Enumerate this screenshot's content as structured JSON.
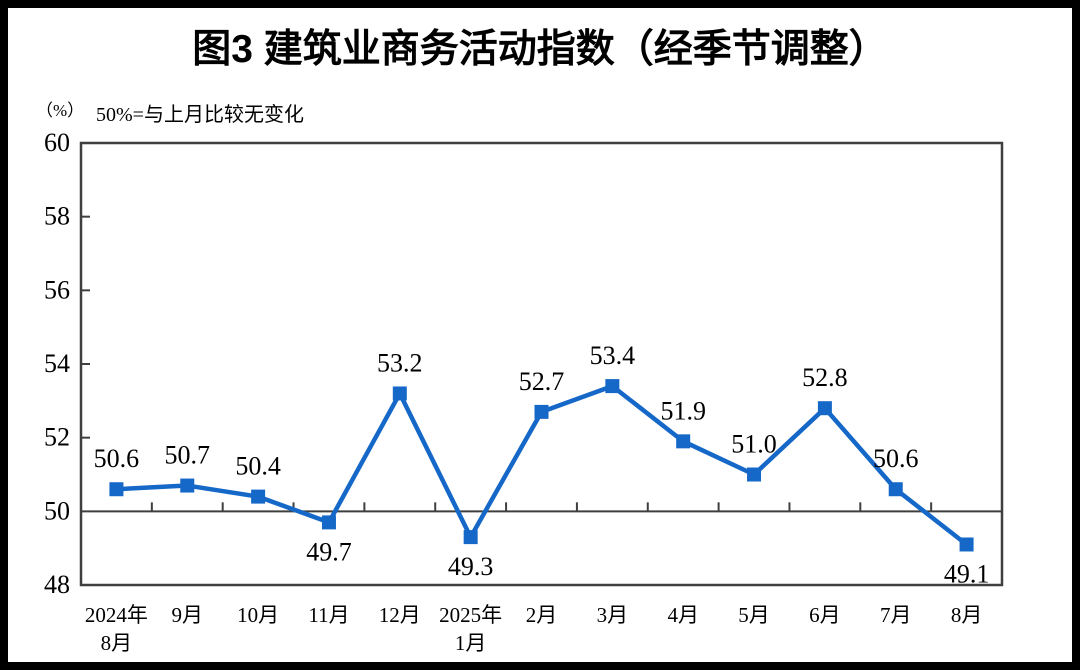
{
  "header": {
    "title": "图3 建筑业商务活动指数（经季节调整）",
    "unit_label": "（%）",
    "note": "50%=与上月比较无变化"
  },
  "chart_data": {
    "type": "line",
    "title": "图3 建筑业商务活动指数（经季节调整）",
    "unit_label": "（%）",
    "note": "50%=与上月比较无变化",
    "categories": [
      "2024年\n8月",
      "9月",
      "10月",
      "11月",
      "12月",
      "2025年\n1月",
      "2月",
      "3月",
      "4月",
      "5月",
      "6月",
      "7月",
      "8月"
    ],
    "series": [
      {
        "name": "建筑业商务活动指数",
        "values": [
          50.6,
          50.7,
          50.4,
          49.7,
          53.2,
          49.3,
          52.7,
          53.4,
          51.9,
          51.0,
          52.8,
          50.6,
          49.1
        ],
        "label_positions": [
          "above",
          "above",
          "above",
          "below",
          "above",
          "below",
          "above",
          "above",
          "above",
          "above",
          "above",
          "above",
          "below"
        ],
        "color": "#1568C8",
        "marker": "square"
      }
    ],
    "ylim": [
      48,
      60
    ],
    "yticks": [
      48,
      50,
      52,
      54,
      56,
      58,
      60
    ],
    "baseline_value": 50,
    "data_label_decimals": 1,
    "grid": false,
    "legend_position": "none",
    "axis_color": "#3f3f3f"
  }
}
